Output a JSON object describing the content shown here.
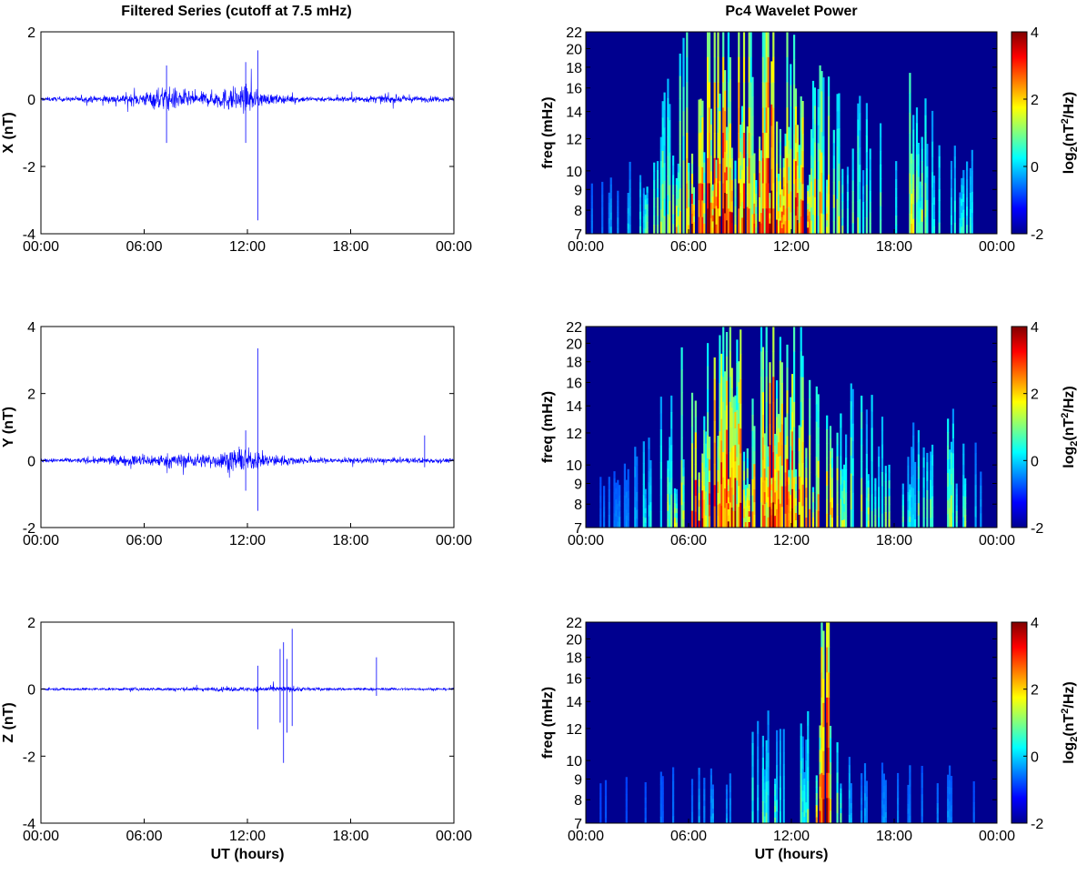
{
  "titles": {
    "left": "Filtered Series (cutoff at 7.5 mHz)",
    "right": "Pc4 Wavelet Power"
  },
  "chart_data": [
    {
      "type": "line",
      "panel": "time-series-x",
      "title": "Filtered Series (cutoff at 7.5 mHz)",
      "ylabel": "X (nT)",
      "xlabel": "",
      "x_ticks": [
        "00:00",
        "06:00",
        "12:00",
        "18:00",
        "00:00"
      ],
      "y_ticks": [
        "2",
        "0",
        "-2",
        "-4"
      ],
      "ylim": [
        -4,
        2
      ],
      "xlim_hours": [
        0,
        24
      ],
      "color": "#0000ff",
      "series": [
        {
          "values_envelope_hours": [
            0,
            2,
            4,
            6,
            7,
            8,
            9,
            10,
            11,
            12,
            13,
            14,
            16,
            18,
            20,
            22,
            24
          ],
          "amplitude_nT": [
            0.1,
            0.12,
            0.2,
            0.35,
            0.6,
            0.55,
            0.3,
            0.4,
            0.6,
            0.65,
            0.3,
            0.2,
            0.12,
            0.15,
            0.2,
            0.15,
            0.12
          ]
        }
      ],
      "spikes": [
        {
          "hour": 12.6,
          "min": -3.6,
          "max": 1.45
        },
        {
          "hour": 7.3,
          "min": -1.3,
          "max": 1.0
        },
        {
          "hour": 11.9,
          "min": -1.3,
          "max": 1.1
        }
      ]
    },
    {
      "type": "line",
      "panel": "time-series-y",
      "ylabel": "Y (nT)",
      "xlabel": "",
      "x_ticks": [
        "00:00",
        "06:00",
        "12:00",
        "18:00",
        "00:00"
      ],
      "y_ticks": [
        "4",
        "2",
        "0",
        "-2"
      ],
      "ylim": [
        -2,
        4
      ],
      "xlim_hours": [
        0,
        24
      ],
      "color": "#0000ff",
      "series": [
        {
          "values_envelope_hours": [
            0,
            2,
            4,
            6,
            8,
            10,
            11,
            12,
            13,
            14,
            16,
            18,
            20,
            22,
            24
          ],
          "amplitude_nT": [
            0.1,
            0.12,
            0.2,
            0.3,
            0.35,
            0.35,
            0.5,
            0.55,
            0.35,
            0.25,
            0.15,
            0.15,
            0.12,
            0.15,
            0.1
          ]
        }
      ],
      "spikes": [
        {
          "hour": 12.6,
          "min": -1.5,
          "max": 3.35
        },
        {
          "hour": 11.9,
          "min": -0.9,
          "max": 0.9
        },
        {
          "hour": 22.3,
          "min": -0.2,
          "max": 0.75
        }
      ]
    },
    {
      "type": "line",
      "panel": "time-series-z",
      "ylabel": "Z (nT)",
      "xlabel": "UT (hours)",
      "x_ticks": [
        "00:00",
        "06:00",
        "12:00",
        "18:00",
        "00:00"
      ],
      "y_ticks": [
        "2",
        "0",
        "-2",
        "-4"
      ],
      "ylim": [
        -4,
        2
      ],
      "xlim_hours": [
        0,
        24
      ],
      "color": "#0000ff",
      "series": [
        {
          "values_envelope_hours": [
            0,
            4,
            8,
            12,
            13,
            14,
            15,
            16,
            18,
            20,
            24
          ],
          "amplitude_nT": [
            0.06,
            0.07,
            0.09,
            0.12,
            0.14,
            0.15,
            0.12,
            0.08,
            0.07,
            0.07,
            0.06
          ]
        }
      ],
      "spikes": [
        {
          "hour": 12.6,
          "min": -1.2,
          "max": 0.7
        },
        {
          "hour": 13.9,
          "min": -1.0,
          "max": 1.2
        },
        {
          "hour": 14.1,
          "min": -2.2,
          "max": 1.4
        },
        {
          "hour": 14.3,
          "min": -1.3,
          "max": 0.9
        },
        {
          "hour": 14.6,
          "min": -1.1,
          "max": 1.8
        },
        {
          "hour": 19.5,
          "min": -0.2,
          "max": 0.95
        }
      ]
    },
    {
      "type": "heatmap",
      "panel": "wavelet-x",
      "title": "Pc4 Wavelet Power",
      "ylabel": "freq (mHz)",
      "xlabel": "",
      "x_ticks": [
        "00:00",
        "06:00",
        "12:00",
        "18:00",
        "00:00"
      ],
      "y_ticks": [
        "22",
        "20",
        "18",
        "16",
        "14",
        "12",
        "10",
        "9",
        "8",
        "7"
      ],
      "ylim_mHz": [
        7,
        22
      ],
      "y_scale": "log",
      "colorbar_label": "log2(nT2/Hz)",
      "colorbar_ticks": [
        "4",
        "2",
        "0",
        "-2"
      ],
      "clim": [
        -2,
        4
      ],
      "colormap": "jet",
      "activity_hours": [
        0,
        2,
        3,
        4,
        5,
        6,
        7,
        8,
        9,
        10,
        11,
        12,
        13,
        14,
        15,
        16,
        17,
        18,
        19,
        20,
        21,
        22,
        23,
        24
      ],
      "activity_level": [
        0.05,
        0.15,
        0.3,
        0.4,
        0.55,
        0.75,
        0.85,
        0.9,
        0.85,
        0.9,
        1.0,
        0.85,
        0.75,
        0.55,
        0.6,
        0.45,
        0.35,
        0.4,
        0.55,
        0.45,
        0.3,
        0.25,
        0.2,
        0.1
      ]
    },
    {
      "type": "heatmap",
      "panel": "wavelet-y",
      "ylabel": "freq (mHz)",
      "xlabel": "",
      "x_ticks": [
        "00:00",
        "06:00",
        "12:00",
        "18:00",
        "00:00"
      ],
      "y_ticks": [
        "22",
        "20",
        "18",
        "16",
        "14",
        "12",
        "10",
        "9",
        "8",
        "7"
      ],
      "ylim_mHz": [
        7,
        22
      ],
      "y_scale": "log",
      "colorbar_label": "log2(nT2/Hz)",
      "colorbar_ticks": [
        "4",
        "2",
        "0",
        "-2"
      ],
      "clim": [
        -2,
        4
      ],
      "colormap": "jet",
      "activity_hours": [
        0,
        2,
        3,
        4,
        5,
        6,
        7,
        8,
        9,
        10,
        11,
        12,
        13,
        14,
        15,
        16,
        17,
        18,
        19,
        20,
        21,
        22,
        23,
        24
      ],
      "activity_level": [
        0.05,
        0.1,
        0.2,
        0.35,
        0.55,
        0.65,
        0.8,
        0.85,
        0.75,
        0.8,
        0.95,
        0.85,
        0.7,
        0.55,
        0.5,
        0.4,
        0.45,
        0.35,
        0.3,
        0.35,
        0.4,
        0.45,
        0.2,
        0.1
      ]
    },
    {
      "type": "heatmap",
      "panel": "wavelet-z",
      "ylabel": "freq (mHz)",
      "xlabel": "UT (hours)",
      "x_ticks": [
        "00:00",
        "06:00",
        "12:00",
        "18:00",
        "00:00"
      ],
      "y_ticks": [
        "22",
        "20",
        "18",
        "16",
        "14",
        "12",
        "10",
        "9",
        "8",
        "7"
      ],
      "ylim_mHz": [
        7,
        22
      ],
      "y_scale": "log",
      "colorbar_label": "log2(nT2/Hz)",
      "colorbar_ticks": [
        "4",
        "2",
        "0",
        "-2"
      ],
      "clim": [
        -2,
        4
      ],
      "colormap": "jet",
      "activity_hours": [
        0,
        4,
        6,
        8,
        9,
        10,
        11,
        12,
        13,
        13.5,
        14,
        14.5,
        15,
        16,
        18,
        20,
        22,
        24
      ],
      "activity_level": [
        0.02,
        0.05,
        0.1,
        0.15,
        0.2,
        0.3,
        0.35,
        0.3,
        0.35,
        0.55,
        1.0,
        0.5,
        0.2,
        0.12,
        0.1,
        0.1,
        0.08,
        0.05
      ]
    }
  ]
}
